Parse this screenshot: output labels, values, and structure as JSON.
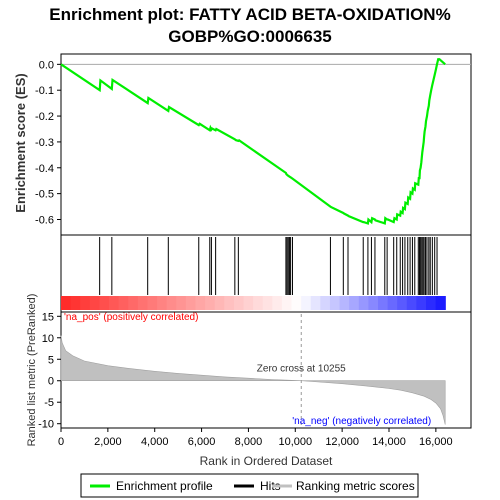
{
  "chart_data": {
    "type": "line",
    "title_lines": [
      "Enrichment plot: FATTY ACID BETA-OXIDATION%",
      "GOBP%GO:0006635"
    ],
    "es_panel": {
      "ylabel": "Enrichment score (ES)",
      "ylim": [
        -0.66,
        0.04
      ],
      "yticks": [
        0.0,
        -0.1,
        -0.2,
        -0.3,
        -0.4,
        -0.5,
        -0.6
      ],
      "ytick_labels": [
        "0.0",
        "-0.1",
        "-0.2",
        "-0.3",
        "-0.4",
        "-0.5",
        "-0.6"
      ],
      "curve_color": "#00ee00",
      "series": [
        {
          "name": "Enrichment profile",
          "x": [
            0,
            1650,
            1680,
            2170,
            2200,
            3700,
            3730,
            4580,
            4610,
            5880,
            5920,
            6350,
            6380,
            6420,
            6450,
            6600,
            6630,
            7420,
            7460,
            7570,
            7600,
            9600,
            9620,
            9650,
            9680,
            9720,
            9750,
            9800,
            9850,
            9880,
            11500,
            11530,
            12050,
            12080,
            12250,
            12280,
            12900,
            12920,
            13100,
            13120,
            13250,
            13280,
            13400,
            13420,
            13820,
            13840,
            13920,
            13950,
            14200,
            14230,
            14330,
            14350,
            14480,
            14500,
            14580,
            14600,
            14680,
            14700,
            14800,
            14820,
            14900,
            14920,
            15000,
            15020,
            15100,
            15120,
            15250,
            15270,
            15300,
            15320,
            15350,
            15380,
            15400,
            15420,
            15450,
            15480,
            15500,
            15520,
            15560,
            15580,
            15620,
            15650,
            15700,
            15720,
            15760,
            15800,
            15850,
            15900,
            15950,
            16000,
            16050,
            16100,
            16150,
            16400
          ],
          "y": [
            0.0,
            -0.1,
            -0.062,
            -0.095,
            -0.06,
            -0.15,
            -0.13,
            -0.18,
            -0.165,
            -0.235,
            -0.23,
            -0.255,
            -0.245,
            -0.252,
            -0.248,
            -0.255,
            -0.25,
            -0.29,
            -0.293,
            -0.296,
            -0.294,
            -0.42,
            -0.425,
            -0.427,
            -0.43,
            -0.432,
            -0.434,
            -0.437,
            -0.44,
            -0.442,
            -0.55,
            -0.552,
            -0.575,
            -0.577,
            -0.585,
            -0.587,
            -0.61,
            -0.61,
            -0.615,
            -0.6,
            -0.61,
            -0.595,
            -0.6,
            -0.603,
            -0.615,
            -0.595,
            -0.6,
            -0.6,
            -0.61,
            -0.595,
            -0.6,
            -0.58,
            -0.585,
            -0.57,
            -0.575,
            -0.555,
            -0.56,
            -0.535,
            -0.54,
            -0.515,
            -0.52,
            -0.495,
            -0.5,
            -0.48,
            -0.485,
            -0.46,
            -0.465,
            -0.44,
            -0.44,
            -0.41,
            -0.4,
            -0.38,
            -0.36,
            -0.34,
            -0.32,
            -0.3,
            -0.28,
            -0.26,
            -0.24,
            -0.22,
            -0.2,
            -0.18,
            -0.16,
            -0.14,
            -0.12,
            -0.1,
            -0.08,
            -0.06,
            -0.04,
            -0.02,
            0.0,
            0.02,
            0.02,
            0.0
          ]
        }
      ]
    },
    "hits_panel": {
      "hit_positions": [
        1650,
        2170,
        3700,
        4580,
        5880,
        6350,
        6420,
        6600,
        7420,
        7570,
        9600,
        9650,
        9700,
        9750,
        9800,
        9880,
        11500,
        12050,
        12250,
        12900,
        13100,
        13250,
        13400,
        13820,
        13920,
        14200,
        14330,
        14480,
        14580,
        14680,
        14800,
        14900,
        15000,
        15100,
        15250,
        15300,
        15350,
        15400,
        15450,
        15500,
        15560,
        15620,
        15700,
        15760,
        15850,
        15950,
        16050
      ]
    },
    "rank_panel": {
      "ylabel": "Ranked list metric (PreRanked)",
      "ylim": [
        -11,
        16
      ],
      "yticks": [
        15,
        10,
        5,
        0,
        -5,
        -10
      ],
      "xlabel": "Rank in Ordered Dataset",
      "xlim": [
        0,
        17500
      ],
      "xticks": [
        0,
        2000,
        4000,
        6000,
        8000,
        10000,
        12000,
        14000,
        16000
      ],
      "xtick_labels": [
        "0",
        "2,000",
        "4,000",
        "6,000",
        "8,000",
        "10,000",
        "12,000",
        "14,000",
        "16,000"
      ],
      "n_genes": 16400,
      "zero_cross": 10255,
      "zero_cross_label": "Zero cross at 10255",
      "pos_label": "'na_pos' (positively correlated)",
      "neg_label": "'na_neg' (negatively correlated)",
      "pos_color": "#ff0000",
      "neg_color": "#0000ff",
      "metric_profile": {
        "x": [
          0,
          50,
          200,
          500,
          1000,
          2000,
          3000,
          4000,
          5000,
          6000,
          7000,
          8000,
          9000,
          10255,
          11000,
          12000,
          13000,
          14000,
          14500,
          15000,
          15500,
          15800,
          16000,
          16200,
          16300,
          16400
        ],
        "y": [
          10.5,
          8.8,
          7.0,
          5.8,
          4.6,
          3.5,
          2.8,
          2.2,
          1.7,
          1.3,
          0.9,
          0.6,
          0.3,
          0.0,
          -0.3,
          -0.7,
          -1.2,
          -1.8,
          -2.2,
          -2.8,
          -3.6,
          -4.4,
          -5.2,
          -6.5,
          -8.0,
          -10.2
        ]
      }
    },
    "legend": {
      "items": [
        {
          "label": "Enrichment profile",
          "color": "#00ee00"
        },
        {
          "label": "Hits",
          "color": "#000000"
        },
        {
          "label": "Ranking metric scores",
          "color": "#c0c0c0"
        }
      ]
    }
  }
}
